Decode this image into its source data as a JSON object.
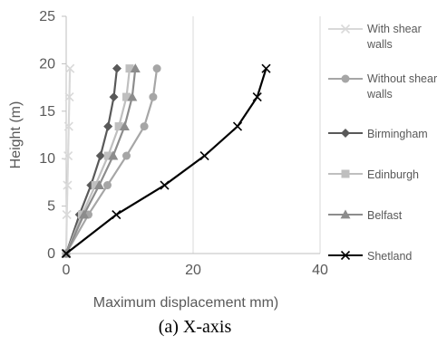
{
  "caption": "(a)  X-axis",
  "chart_data": {
    "type": "line",
    "title": "",
    "xlabel": "Maximum displacement mm)",
    "ylabel": "Height (m)",
    "xlim": [
      0,
      40
    ],
    "ylim": [
      0,
      25
    ],
    "xticks": [
      "0",
      "20",
      "40"
    ],
    "yticks": [
      "0",
      "5",
      "10",
      "15",
      "20",
      "25"
    ],
    "grid": "vertical",
    "legend_position": "right",
    "series": [
      {
        "name": "With shear walls",
        "color": "#d9d9d9",
        "marker": "x",
        "points": [
          [
            0,
            0
          ],
          [
            0.1,
            4.1
          ],
          [
            0.2,
            7.2
          ],
          [
            0.3,
            10.3
          ],
          [
            0.4,
            13.4
          ],
          [
            0.5,
            16.5
          ],
          [
            0.6,
            19.5
          ]
        ]
      },
      {
        "name": "Without shear walls",
        "color": "#a6a6a6",
        "marker": "circle",
        "points": [
          [
            0,
            0
          ],
          [
            3.5,
            4.1
          ],
          [
            6.5,
            7.2
          ],
          [
            9.5,
            10.3
          ],
          [
            12.3,
            13.4
          ],
          [
            13.7,
            16.5
          ],
          [
            14.3,
            19.5
          ]
        ]
      },
      {
        "name": "Birmingham",
        "color": "#595959",
        "marker": "diamond",
        "points": [
          [
            0,
            0
          ],
          [
            2.1,
            4.1
          ],
          [
            3.9,
            7.2
          ],
          [
            5.4,
            10.3
          ],
          [
            6.6,
            13.4
          ],
          [
            7.5,
            16.5
          ],
          [
            8.0,
            19.5
          ]
        ]
      },
      {
        "name": "Edinburgh",
        "color": "#bfbfbf",
        "marker": "square",
        "points": [
          [
            0,
            0
          ],
          [
            2.5,
            4.1
          ],
          [
            4.6,
            7.2
          ],
          [
            6.6,
            10.3
          ],
          [
            8.3,
            13.4
          ],
          [
            9.5,
            16.5
          ],
          [
            10.0,
            19.5
          ]
        ]
      },
      {
        "name": "Belfast",
        "color": "#8c8c8c",
        "marker": "triangle",
        "points": [
          [
            0,
            0
          ],
          [
            2.8,
            4.1
          ],
          [
            5.2,
            7.2
          ],
          [
            7.4,
            10.3
          ],
          [
            9.2,
            13.4
          ],
          [
            10.4,
            16.5
          ],
          [
            10.9,
            19.5
          ]
        ]
      },
      {
        "name": "Shetland",
        "color": "#000000",
        "marker": "x",
        "points": [
          [
            0,
            0
          ],
          [
            7.9,
            4.1
          ],
          [
            15.5,
            7.2
          ],
          [
            21.8,
            10.3
          ],
          [
            27.0,
            13.4
          ],
          [
            30.1,
            16.5
          ],
          [
            31.5,
            19.5
          ]
        ]
      }
    ]
  }
}
